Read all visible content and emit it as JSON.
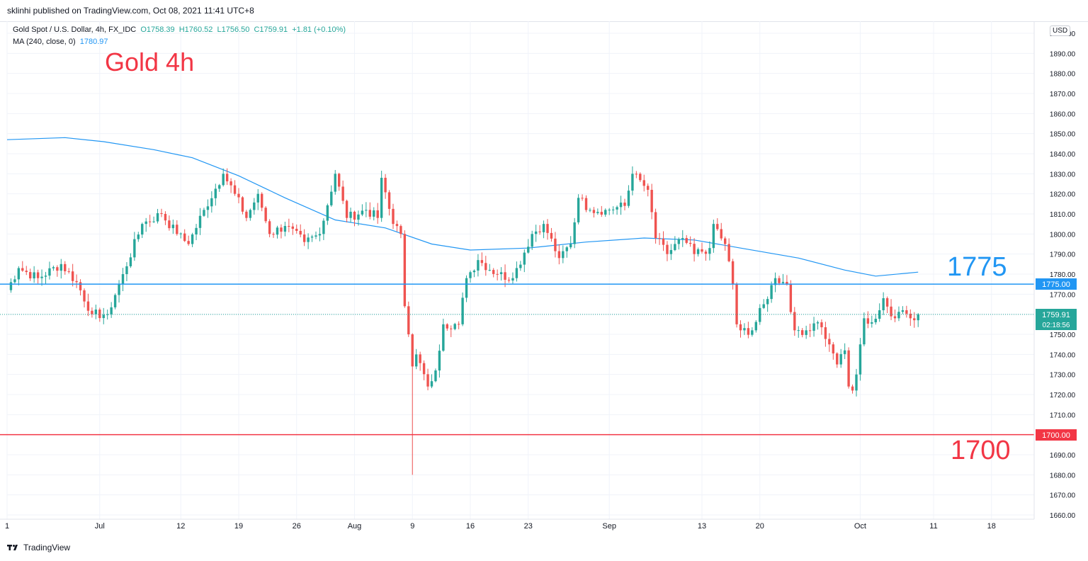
{
  "header": {
    "published_text": "sklinhi published on TradingView.com, Oct 08, 2021 11:41 UTC+8"
  },
  "legend": {
    "symbol": "Gold Spot / U.S. Dollar, 4h, FX_IDC",
    "open": "O1758.39",
    "high": "H1760.52",
    "low": "L1756.50",
    "close": "C1759.91",
    "change": "+1.81 (+0.10%)",
    "ma_label": "MA (240, close, 0)",
    "ma_value": "1780.97"
  },
  "annotations": {
    "title": "Gold 4h",
    "level_high": "1775",
    "level_low": "1700"
  },
  "price_scale": {
    "currency": "USD",
    "line_1775_label": "1775.00",
    "line_1700_label": "1700.00",
    "last_price_label": "1759.91",
    "countdown_label": "02:18:56"
  },
  "footer": {
    "brand": "TradingView"
  },
  "colors": {
    "up": "#26a69a",
    "down": "#ef5350",
    "ma": "#2196f3",
    "line_1775": "#2196f3",
    "line_1700": "#f23645",
    "title": "#f23645",
    "grid": "#f0f3fa"
  },
  "chart_data": {
    "type": "candlestick",
    "timeframe": "4h",
    "ylim": [
      1660,
      1900
    ],
    "y_ticks": [
      1660,
      1670,
      1680,
      1690,
      1700,
      1710,
      1720,
      1730,
      1740,
      1750,
      1760,
      1770,
      1780,
      1790,
      1800,
      1810,
      1820,
      1830,
      1840,
      1850,
      1860,
      1870,
      1880,
      1890,
      1900
    ],
    "x_ticks": [
      {
        "label": "1",
        "bar": 0
      },
      {
        "label": "Jul",
        "bar": 24
      },
      {
        "label": "12",
        "bar": 45
      },
      {
        "label": "19",
        "bar": 60
      },
      {
        "label": "26",
        "bar": 75
      },
      {
        "label": "Aug",
        "bar": 90
      },
      {
        "label": "9",
        "bar": 105
      },
      {
        "label": "16",
        "bar": 120
      },
      {
        "label": "23",
        "bar": 135
      },
      {
        "label": "Sep",
        "bar": 156
      },
      {
        "label": "13",
        "bar": 180
      },
      {
        "label": "20",
        "bar": 195
      },
      {
        "label": "Oct",
        "bar": 221
      },
      {
        "label": "11",
        "bar": 240
      },
      {
        "label": "18",
        "bar": 255
      }
    ],
    "key_levels": [
      1775,
      1700
    ],
    "last_price": 1759.91,
    "anchors": [
      {
        "bar": 0,
        "price": 1772
      },
      {
        "bar": 3,
        "price": 1783
      },
      {
        "bar": 8,
        "price": 1778
      },
      {
        "bar": 14,
        "price": 1785
      },
      {
        "bar": 18,
        "price": 1776
      },
      {
        "bar": 22,
        "price": 1760
      },
      {
        "bar": 26,
        "price": 1760
      },
      {
        "bar": 30,
        "price": 1780
      },
      {
        "bar": 35,
        "price": 1805
      },
      {
        "bar": 40,
        "price": 1810
      },
      {
        "bar": 44,
        "price": 1800
      },
      {
        "bar": 47,
        "price": 1795
      },
      {
        "bar": 51,
        "price": 1812
      },
      {
        "bar": 56,
        "price": 1830
      },
      {
        "bar": 59,
        "price": 1820
      },
      {
        "bar": 62,
        "price": 1808
      },
      {
        "bar": 65,
        "price": 1820
      },
      {
        "bar": 68,
        "price": 1800
      },
      {
        "bar": 72,
        "price": 1804
      },
      {
        "bar": 77,
        "price": 1796
      },
      {
        "bar": 81,
        "price": 1800
      },
      {
        "bar": 85,
        "price": 1830
      },
      {
        "bar": 88,
        "price": 1808
      },
      {
        "bar": 93,
        "price": 1812
      },
      {
        "bar": 96,
        "price": 1808
      },
      {
        "bar": 97,
        "price": 1828
      },
      {
        "bar": 100,
        "price": 1805
      },
      {
        "bar": 102,
        "price": 1800
      },
      {
        "bar": 103,
        "price": 1764
      },
      {
        "bar": 104,
        "price": 1750
      },
      {
        "bar": 105,
        "price": 1734
      },
      {
        "bar": 106,
        "price": 1740
      },
      {
        "bar": 109,
        "price": 1724
      },
      {
        "bar": 111,
        "price": 1732
      },
      {
        "bar": 113,
        "price": 1755
      },
      {
        "bar": 117,
        "price": 1755
      },
      {
        "bar": 119,
        "price": 1778
      },
      {
        "bar": 122,
        "price": 1787
      },
      {
        "bar": 127,
        "price": 1780
      },
      {
        "bar": 131,
        "price": 1778
      },
      {
        "bar": 136,
        "price": 1800
      },
      {
        "bar": 139,
        "price": 1805
      },
      {
        "bar": 143,
        "price": 1788
      },
      {
        "bar": 146,
        "price": 1795
      },
      {
        "bar": 148,
        "price": 1818
      },
      {
        "bar": 151,
        "price": 1812
      },
      {
        "bar": 155,
        "price": 1812
      },
      {
        "bar": 160,
        "price": 1814
      },
      {
        "bar": 162,
        "price": 1830
      },
      {
        "bar": 166,
        "price": 1822
      },
      {
        "bar": 168,
        "price": 1798
      },
      {
        "bar": 171,
        "price": 1790
      },
      {
        "bar": 175,
        "price": 1798
      },
      {
        "bar": 178,
        "price": 1790
      },
      {
        "bar": 182,
        "price": 1793
      },
      {
        "bar": 183,
        "price": 1805
      },
      {
        "bar": 186,
        "price": 1795
      },
      {
        "bar": 188,
        "price": 1775
      },
      {
        "bar": 189,
        "price": 1755
      },
      {
        "bar": 190,
        "price": 1752
      },
      {
        "bar": 193,
        "price": 1752
      },
      {
        "bar": 196,
        "price": 1765
      },
      {
        "bar": 199,
        "price": 1778
      },
      {
        "bar": 202,
        "price": 1775
      },
      {
        "bar": 204,
        "price": 1752
      },
      {
        "bar": 207,
        "price": 1752
      },
      {
        "bar": 210,
        "price": 1756
      },
      {
        "bar": 213,
        "price": 1745
      },
      {
        "bar": 215,
        "price": 1735
      },
      {
        "bar": 217,
        "price": 1742
      },
      {
        "bar": 218,
        "price": 1724
      },
      {
        "bar": 219,
        "price": 1722
      },
      {
        "bar": 220,
        "price": 1730
      },
      {
        "bar": 221,
        "price": 1745
      },
      {
        "bar": 222,
        "price": 1758
      },
      {
        "bar": 224,
        "price": 1756
      },
      {
        "bar": 226,
        "price": 1762
      },
      {
        "bar": 227,
        "price": 1768
      },
      {
        "bar": 230,
        "price": 1758
      },
      {
        "bar": 232,
        "price": 1762
      },
      {
        "bar": 234,
        "price": 1758
      },
      {
        "bar": 236,
        "price": 1760
      }
    ],
    "special_wicks": [
      {
        "bar": 105,
        "low": 1680
      }
    ],
    "moving_average": {
      "name": "MA (240, close, 0)",
      "points": [
        {
          "bar": 0,
          "value": 1847
        },
        {
          "bar": 15,
          "value": 1848
        },
        {
          "bar": 25,
          "value": 1846
        },
        {
          "bar": 38,
          "value": 1842
        },
        {
          "bar": 48,
          "value": 1838
        },
        {
          "bar": 60,
          "value": 1829
        },
        {
          "bar": 72,
          "value": 1818
        },
        {
          "bar": 85,
          "value": 1807
        },
        {
          "bar": 98,
          "value": 1803
        },
        {
          "bar": 110,
          "value": 1795
        },
        {
          "bar": 120,
          "value": 1792
        },
        {
          "bar": 135,
          "value": 1793
        },
        {
          "bar": 150,
          "value": 1796
        },
        {
          "bar": 165,
          "value": 1798
        },
        {
          "bar": 178,
          "value": 1797
        },
        {
          "bar": 190,
          "value": 1793
        },
        {
          "bar": 205,
          "value": 1788
        },
        {
          "bar": 217,
          "value": 1782
        },
        {
          "bar": 225,
          "value": 1779
        },
        {
          "bar": 236,
          "value": 1781
        }
      ]
    }
  }
}
